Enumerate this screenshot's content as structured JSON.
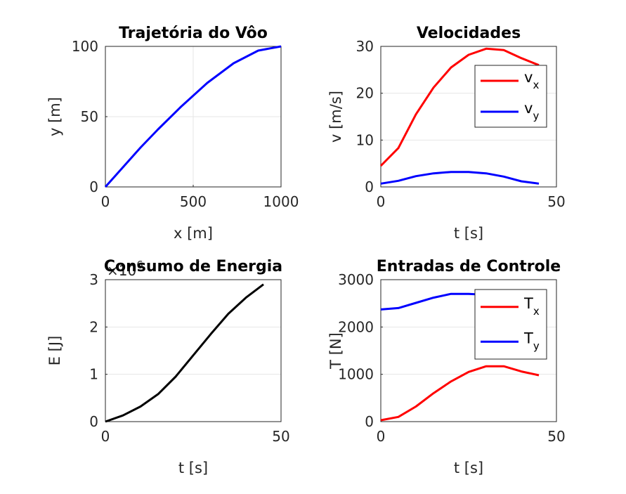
{
  "chart_data": [
    {
      "type": "line",
      "title": "Trajetória do Vôo",
      "xlabel": "x [m]",
      "ylabel": "y [m]",
      "xlim": [
        0,
        1000
      ],
      "ylim": [
        0,
        100
      ],
      "xticks": [
        "0",
        "500",
        "1000"
      ],
      "yticks": [
        "0",
        "50",
        "100"
      ],
      "grid": true,
      "series": [
        {
          "color": "#0000ff",
          "x": [
            0,
            50,
            100,
            200,
            300,
            430,
            580,
            730,
            870,
            1000
          ],
          "y": [
            0,
            7,
            14,
            28,
            41,
            57,
            74,
            88,
            97,
            100
          ]
        }
      ]
    },
    {
      "type": "line",
      "title": "Velocidades",
      "xlabel": "t [s]",
      "ylabel": "v [m/s]",
      "xlim": [
        0,
        50
      ],
      "ylim": [
        0,
        30
      ],
      "xticks": [
        "0",
        "50"
      ],
      "yticks": [
        "0",
        "10",
        "20",
        "30"
      ],
      "grid": true,
      "legend": {
        "placement": "top-right"
      },
      "series": [
        {
          "name_main": "v",
          "name_sub": "x",
          "color": "#ff0000",
          "x": [
            0,
            5,
            10,
            15,
            20,
            25,
            30,
            35,
            40,
            45
          ],
          "y": [
            4.5,
            8.3,
            15.5,
            21.2,
            25.5,
            28.2,
            29.5,
            29.2,
            27.5,
            26.0
          ]
        },
        {
          "name_main": "v",
          "name_sub": "y",
          "color": "#0000ff",
          "x": [
            0,
            5,
            10,
            15,
            20,
            25,
            30,
            35,
            40,
            45
          ],
          "y": [
            0.7,
            1.3,
            2.3,
            2.9,
            3.2,
            3.2,
            2.9,
            2.2,
            1.2,
            0.7
          ]
        }
      ]
    },
    {
      "type": "line",
      "title": "Consumo de Energia",
      "xlabel": "t [s]",
      "ylabel": "E [J]",
      "exponent_main": "×10",
      "exponent_sup": "6",
      "xlim": [
        0,
        50
      ],
      "ylim": [
        0,
        3
      ],
      "xticks": [
        "0",
        "50"
      ],
      "yticks": [
        "0",
        "1",
        "2",
        "3"
      ],
      "grid": true,
      "series": [
        {
          "color": "#000000",
          "x": [
            0,
            5,
            10,
            15,
            20,
            25,
            30,
            35,
            40,
            45
          ],
          "y": [
            0,
            0.13,
            0.32,
            0.58,
            0.95,
            1.4,
            1.85,
            2.28,
            2.62,
            2.9
          ]
        }
      ]
    },
    {
      "type": "line",
      "title": "Entradas de Controle",
      "xlabel": "t [s]",
      "ylabel": "T [N]",
      "xlim": [
        0,
        50
      ],
      "ylim": [
        0,
        3000
      ],
      "xticks": [
        "0",
        "50"
      ],
      "yticks": [
        "0",
        "1000",
        "2000",
        "3000"
      ],
      "grid": true,
      "legend": {
        "placement": "top-right"
      },
      "series": [
        {
          "name_main": "T",
          "name_sub": "x",
          "color": "#ff0000",
          "x": [
            0,
            5,
            10,
            15,
            20,
            25,
            30,
            35,
            40,
            45
          ],
          "y": [
            30,
            100,
            320,
            600,
            850,
            1050,
            1170,
            1170,
            1060,
            980
          ]
        },
        {
          "name_main": "T",
          "name_sub": "y",
          "color": "#0000ff",
          "x": [
            0,
            5,
            10,
            15,
            20,
            25,
            30,
            35,
            40,
            45
          ],
          "y": [
            2370,
            2400,
            2510,
            2620,
            2700,
            2700,
            2680,
            2650,
            2600,
            2550
          ]
        }
      ]
    }
  ]
}
